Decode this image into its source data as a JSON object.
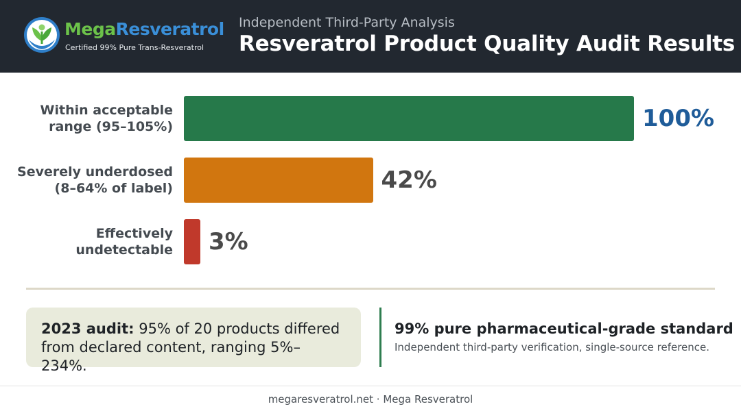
{
  "header": {
    "logo": {
      "name_part1": "Mega",
      "name_part2": "Resveratrol",
      "tagline": "Certified 99% Pure Trans-Resveratrol"
    },
    "subtitle": "Independent Third-Party Analysis",
    "title": "Resveratrol Product Quality Audit Results"
  },
  "chart_data": {
    "type": "bar",
    "orientation": "horizontal",
    "categories": [
      [
        "Within acceptable",
        "range (95–105%)"
      ],
      [
        "Severely underdosed",
        "(8–64% of label)"
      ],
      [
        "Effectively",
        "undetectable"
      ]
    ],
    "values": [
      100,
      42,
      3
    ],
    "value_labels": [
      "100%",
      "42%",
      "3%"
    ],
    "colors": [
      "#26794a",
      "#d1760f",
      "#c0392b"
    ],
    "value_label_colors": [
      "#1f5c99",
      "#4a4a4a",
      "#4a4a4a"
    ],
    "xlim": [
      0,
      100
    ],
    "grid": false
  },
  "note": {
    "bold": "2023 audit:",
    "text": " 95% of 20 products differed from declared content, ranging 5%–234%."
  },
  "standard": {
    "title": "99% pure pharmaceutical-grade standard",
    "subtitle": "Independent third-party verification, single-source reference."
  },
  "footer": "megaresveratrol.net · Mega Resveratrol"
}
